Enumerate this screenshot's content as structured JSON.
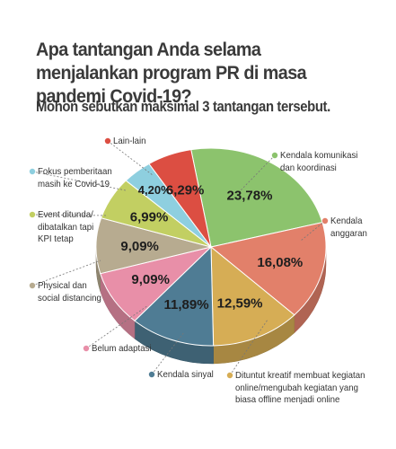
{
  "title": "Apa tantangan Anda selama menjalankan program PR di masa pandemi Covid-19?",
  "subtitle": "Mohon sebutkan maksimal 3 tantangan tersebut.",
  "chart_data": {
    "type": "pie",
    "title": "Apa tantangan Anda selama menjalankan program PR di masa pandemi Covid-19?",
    "subtitle": "Mohon sebutkan maksimal 3 tantangan tersebut.",
    "slices": [
      {
        "label": "Kendala komunikasi\ndan koordinasi",
        "value": 23.78,
        "display": "23,78%",
        "color": "#8cc36d"
      },
      {
        "label": "Kendala\nanggaran",
        "value": 16.08,
        "display": "16,08%",
        "color": "#e2806a"
      },
      {
        "label": "Dituntut kreatif membuat kegiatan\nonline/mengubah kegiatan yang\nbiasa offline menjadi online",
        "value": 12.59,
        "display": "12,59%",
        "color": "#d6ad55"
      },
      {
        "label": "Kendala sinyal",
        "value": 11.89,
        "display": "11,89%",
        "color": "#4f7c94"
      },
      {
        "label": "Belum adaptasi",
        "value": 9.09,
        "display": "9,09%",
        "color": "#e88fa8"
      },
      {
        "label": "Physical dan\nsocial distancing",
        "value": 9.09,
        "display": "9,09%",
        "color": "#b7ab90"
      },
      {
        "label": "Event ditunda/\ndibatalkan tapi\nKPI tetap",
        "value": 6.99,
        "display": "6,99%",
        "color": "#c2cf62"
      },
      {
        "label": "Fokus pemberitaan\nmasih ke Covid-19",
        "value": 4.2,
        "display": "4,20%",
        "color": "#8ecfdf"
      },
      {
        "label": "Lain-lain",
        "value": 6.29,
        "display": "6,29%",
        "color": "#dc4e42"
      }
    ]
  }
}
